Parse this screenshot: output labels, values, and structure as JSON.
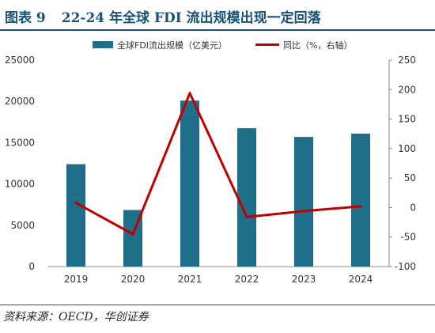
{
  "figure": {
    "number_label": "图表 9",
    "title": "22-24 年全球 FDI 流出规模出现一定回落",
    "source": "资料来源：OECD，华创证券"
  },
  "colors": {
    "bar": "#1f6f8b",
    "line": "#c00000",
    "title": "#1a5276",
    "axis": "#888888",
    "text": "#333333"
  },
  "chart_data": {
    "type": "bar",
    "categories": [
      "2019",
      "2020",
      "2021",
      "2022",
      "2023",
      "2024"
    ],
    "series": [
      {
        "name": "全球FDI流出规模（亿美元）",
        "kind": "bar",
        "axis": "left",
        "values": [
          12400,
          6850,
          20100,
          16750,
          15700,
          16100
        ]
      },
      {
        "name": "同比（%，右轴）",
        "kind": "line",
        "axis": "right",
        "values": [
          8,
          -45,
          194,
          -16,
          -6,
          2
        ]
      }
    ],
    "y_left": {
      "min": 0,
      "max": 25000,
      "ticks": [
        0,
        5000,
        10000,
        15000,
        20000,
        25000
      ]
    },
    "y_right": {
      "min": -100,
      "max": 250,
      "ticks": [
        -100,
        -50,
        0,
        50,
        100,
        150,
        200,
        250
      ]
    },
    "legend_position": "top",
    "grid": false
  }
}
